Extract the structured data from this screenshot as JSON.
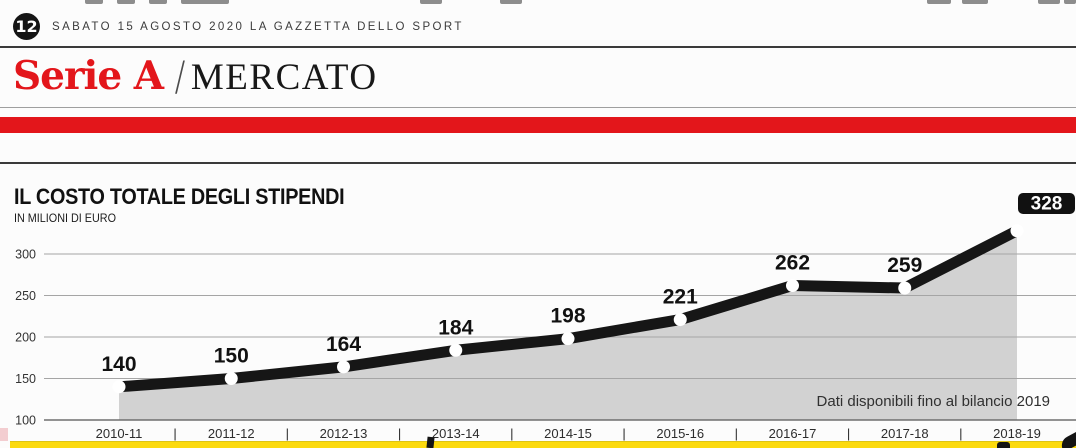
{
  "page": {
    "page_number": "12",
    "dateline": "SABATO 15 AGOSTO 2020 LA GAZZETTA DELLO SPORT",
    "section": "Serie A",
    "section_divider": "/",
    "subsection": "MERCATO"
  },
  "colors": {
    "brand_red": "#e3161b",
    "line_black": "#161616",
    "area_gray": "#d2d2d2",
    "highlight_box": "#111111",
    "yellow_band": "#fcda0e"
  },
  "chart_data": {
    "type": "line",
    "title": "IL COSTO TOTALE DEGLI STIPENDI",
    "subtitle": "IN MILIONI DI EURO",
    "categories": [
      "2010-11",
      "2011-12",
      "2012-13",
      "2013-14",
      "2014-15",
      "2015-16",
      "2016-17",
      "2017-18",
      "2018-19"
    ],
    "values": [
      140,
      150,
      164,
      184,
      198,
      221,
      262,
      259,
      328
    ],
    "y_ticks": [
      100,
      150,
      200,
      250,
      300
    ],
    "ylim": [
      100,
      300
    ],
    "xlabel": "",
    "ylabel": "IN MILIONI DI EURO",
    "grid": true,
    "area_fill": true,
    "note": "Dati disponibili fino al bilancio 2019",
    "highlight_last_value": true,
    "marker": "white-dot",
    "category_separator": "|"
  }
}
